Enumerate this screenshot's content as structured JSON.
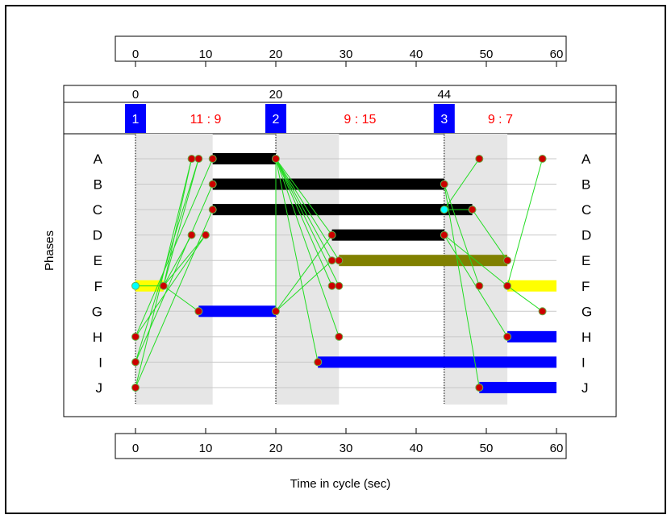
{
  "chart_data": {
    "type": "timing-diagram",
    "xlabel": "Time in cycle (sec)",
    "ylabel": "Phases",
    "xlim": [
      0,
      60
    ],
    "ticks": [
      0,
      10,
      20,
      30,
      40,
      50,
      60
    ],
    "phases": [
      "A",
      "B",
      "C",
      "D",
      "E",
      "F",
      "G",
      "H",
      "I",
      "J"
    ],
    "stages": [
      {
        "number": "1",
        "start": 0,
        "label": "11 : 9"
      },
      {
        "number": "2",
        "start": 20,
        "label": "9 : 15"
      },
      {
        "number": "3",
        "start": 44,
        "label": "9 : 7"
      }
    ],
    "intergreen_shading": [
      [
        0,
        11
      ],
      [
        20,
        29
      ],
      [
        44,
        53
      ]
    ],
    "bars": [
      {
        "phase": "A",
        "start": 11,
        "end": 20,
        "color": "#000000"
      },
      {
        "phase": "B",
        "start": 11,
        "end": 44,
        "color": "#000000"
      },
      {
        "phase": "C",
        "start": 11,
        "end": 48,
        "color": "#000000"
      },
      {
        "phase": "D",
        "start": 28,
        "end": 44,
        "color": "#000000"
      },
      {
        "phase": "E",
        "start": 29,
        "end": 53,
        "color": "#808000"
      },
      {
        "phase": "F",
        "start": 0,
        "end": 4,
        "color": "#ffff00"
      },
      {
        "phase": "F",
        "start": 53,
        "end": 60,
        "color": "#ffff00"
      },
      {
        "phase": "G",
        "start": 9,
        "end": 20,
        "color": "#0000ff"
      },
      {
        "phase": "H",
        "start": 53,
        "end": 60,
        "color": "#0000ff"
      },
      {
        "phase": "I",
        "start": 26,
        "end": 60,
        "color": "#0000ff"
      },
      {
        "phase": "J",
        "start": 49,
        "end": 60,
        "color": "#0000ff"
      }
    ],
    "points": [
      {
        "phase": "A",
        "t": 8,
        "color": "#cc0000"
      },
      {
        "phase": "A",
        "t": 9,
        "color": "#cc0000"
      },
      {
        "phase": "A",
        "t": 11,
        "color": "#cc0000"
      },
      {
        "phase": "A",
        "t": 20,
        "color": "#cc0000"
      },
      {
        "phase": "A",
        "t": 49,
        "color": "#cc0000"
      },
      {
        "phase": "A",
        "t": 58,
        "color": "#cc0000"
      },
      {
        "phase": "B",
        "t": 11,
        "color": "#cc0000"
      },
      {
        "phase": "B",
        "t": 44,
        "color": "#cc0000"
      },
      {
        "phase": "C",
        "t": 11,
        "color": "#cc0000"
      },
      {
        "phase": "C",
        "t": 44,
        "color": "#00ffff"
      },
      {
        "phase": "C",
        "t": 48,
        "color": "#cc0000"
      },
      {
        "phase": "D",
        "t": 8,
        "color": "#cc0000"
      },
      {
        "phase": "D",
        "t": 10,
        "color": "#cc0000"
      },
      {
        "phase": "D",
        "t": 28,
        "color": "#cc0000"
      },
      {
        "phase": "D",
        "t": 44,
        "color": "#cc0000"
      },
      {
        "phase": "E",
        "t": 28,
        "color": "#cc0000"
      },
      {
        "phase": "E",
        "t": 29,
        "color": "#cc0000"
      },
      {
        "phase": "E",
        "t": 53,
        "color": "#cc0000"
      },
      {
        "phase": "F",
        "t": 0,
        "color": "#00ffff"
      },
      {
        "phase": "F",
        "t": 4,
        "color": "#cc0000"
      },
      {
        "phase": "F",
        "t": 28,
        "color": "#cc0000"
      },
      {
        "phase": "F",
        "t": 29,
        "color": "#cc0000"
      },
      {
        "phase": "F",
        "t": 49,
        "color": "#cc0000"
      },
      {
        "phase": "F",
        "t": 53,
        "color": "#cc0000"
      },
      {
        "phase": "G",
        "t": 9,
        "color": "#cc0000"
      },
      {
        "phase": "G",
        "t": 20,
        "color": "#cc0000"
      },
      {
        "phase": "G",
        "t": 58,
        "color": "#cc0000"
      },
      {
        "phase": "H",
        "t": 0,
        "color": "#cc0000"
      },
      {
        "phase": "H",
        "t": 29,
        "color": "#cc0000"
      },
      {
        "phase": "H",
        "t": 53,
        "color": "#cc0000"
      },
      {
        "phase": "I",
        "t": 0,
        "color": "#cc0000"
      },
      {
        "phase": "I",
        "t": 26,
        "color": "#cc0000"
      },
      {
        "phase": "J",
        "t": 0,
        "color": "#cc0000"
      },
      {
        "phase": "J",
        "t": 49,
        "color": "#cc0000"
      }
    ],
    "links": [
      {
        "from": [
          "F",
          4
        ],
        "to": [
          "A",
          8
        ]
      },
      {
        "from": [
          "F",
          4
        ],
        "to": [
          "A",
          9
        ]
      },
      {
        "from": [
          "F",
          4
        ],
        "to": [
          "D",
          8
        ]
      },
      {
        "from": [
          "F",
          4
        ],
        "to": [
          "D",
          10
        ]
      },
      {
        "from": [
          "F",
          4
        ],
        "to": [
          "G",
          9
        ]
      },
      {
        "from": [
          "F",
          0
        ],
        "to": [
          "F",
          4
        ]
      },
      {
        "from": [
          "H",
          0
        ],
        "to": [
          "A",
          11
        ]
      },
      {
        "from": [
          "H",
          0
        ],
        "to": [
          "D",
          10
        ]
      },
      {
        "from": [
          "I",
          0
        ],
        "to": [
          "B",
          11
        ]
      },
      {
        "from": [
          "I",
          0
        ],
        "to": [
          "A",
          9
        ]
      },
      {
        "from": [
          "J",
          0
        ],
        "to": [
          "C",
          11
        ]
      },
      {
        "from": [
          "J",
          0
        ],
        "to": [
          "A",
          8
        ]
      },
      {
        "from": [
          "A",
          20
        ],
        "to": [
          "D",
          28
        ]
      },
      {
        "from": [
          "A",
          20
        ],
        "to": [
          "E",
          28
        ]
      },
      {
        "from": [
          "A",
          20
        ],
        "to": [
          "E",
          29
        ]
      },
      {
        "from": [
          "A",
          20
        ],
        "to": [
          "F",
          28
        ]
      },
      {
        "from": [
          "A",
          20
        ],
        "to": [
          "F",
          29
        ]
      },
      {
        "from": [
          "A",
          20
        ],
        "to": [
          "H",
          29
        ]
      },
      {
        "from": [
          "A",
          20
        ],
        "to": [
          "I",
          26
        ]
      },
      {
        "from": [
          "A",
          20
        ],
        "to": [
          "G",
          20
        ]
      },
      {
        "from": [
          "G",
          20
        ],
        "to": [
          "D",
          28
        ]
      },
      {
        "from": [
          "G",
          20
        ],
        "to": [
          "E",
          28
        ]
      },
      {
        "from": [
          "C",
          44
        ],
        "to": [
          "A",
          49
        ]
      },
      {
        "from": [
          "C",
          44
        ],
        "to": [
          "C",
          48
        ]
      },
      {
        "from": [
          "B",
          44
        ],
        "to": [
          "F",
          49
        ]
      },
      {
        "from": [
          "B",
          44
        ],
        "to": [
          "J",
          49
        ]
      },
      {
        "from": [
          "D",
          44
        ],
        "to": [
          "H",
          53
        ]
      },
      {
        "from": [
          "D",
          44
        ],
        "to": [
          "F",
          53
        ]
      },
      {
        "from": [
          "C",
          48
        ],
        "to": [
          "E",
          53
        ]
      },
      {
        "from": [
          "F",
          53
        ],
        "to": [
          "A",
          58
        ]
      },
      {
        "from": [
          "F",
          53
        ],
        "to": [
          "G",
          58
        ]
      }
    ]
  }
}
